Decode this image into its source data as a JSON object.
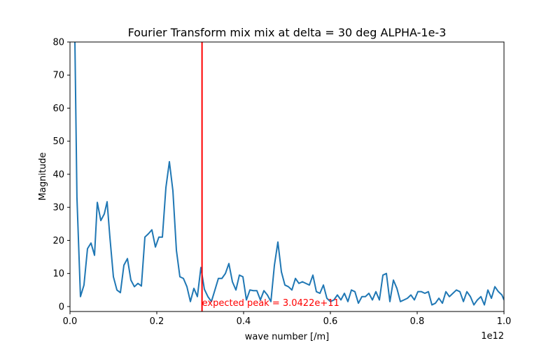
{
  "chart_data": {
    "type": "line",
    "title": "Fourier Transform mix mix at delta = 30 deg ALPHA-1e-3",
    "xlabel": "wave number [/m]",
    "ylabel": "Magnitude",
    "x_offset_label": "1e12",
    "xlim": [
      0,
      1.0
    ],
    "ylim": [
      -1.5,
      80
    ],
    "xticks": [
      0.0,
      0.2,
      0.4,
      0.6,
      0.8,
      1.0
    ],
    "xtick_labels": [
      "0.0",
      "0.2",
      "0.4",
      "0.6",
      "0.8",
      "1.0"
    ],
    "yticks": [
      0,
      10,
      20,
      30,
      40,
      50,
      60,
      70,
      80
    ],
    "ytick_labels": [
      "0",
      "10",
      "20",
      "30",
      "40",
      "50",
      "60",
      "70",
      "80"
    ],
    "grid": false,
    "series_color": "#1f77b4",
    "annotation": {
      "x": 0.30422,
      "text": "expected peak = 3.0422e+11",
      "color": "#ff0000"
    },
    "x": [
      0.0113,
      0.016,
      0.0241,
      0.0322,
      0.0403,
      0.0484,
      0.0565,
      0.0629,
      0.071,
      0.079,
      0.0855,
      0.0919,
      0.1,
      0.1081,
      0.1161,
      0.1242,
      0.1323,
      0.1403,
      0.1484,
      0.1565,
      0.1645,
      0.1726,
      0.1806,
      0.1887,
      0.1968,
      0.2048,
      0.2129,
      0.221,
      0.229,
      0.2371,
      0.2452,
      0.2532,
      0.2613,
      0.2694,
      0.2774,
      0.2855,
      0.2935,
      0.3016,
      0.3097,
      0.3177,
      0.3258,
      0.3339,
      0.3419,
      0.35,
      0.3581,
      0.3661,
      0.3742,
      0.3823,
      0.3903,
      0.3984,
      0.4065,
      0.4145,
      0.4226,
      0.4306,
      0.4387,
      0.4468,
      0.4548,
      0.4629,
      0.471,
      0.479,
      0.4871,
      0.4952,
      0.5032,
      0.5113,
      0.5194,
      0.5274,
      0.5355,
      0.5435,
      0.5516,
      0.5597,
      0.5677,
      0.5758,
      0.5839,
      0.5919,
      0.6,
      0.6081,
      0.6161,
      0.6242,
      0.6323,
      0.6403,
      0.6484,
      0.6565,
      0.6645,
      0.6726,
      0.6806,
      0.6887,
      0.6968,
      0.7048,
      0.7129,
      0.721,
      0.729,
      0.7371,
      0.7452,
      0.7532,
      0.7613,
      0.7694,
      0.7774,
      0.7855,
      0.7935,
      0.8016,
      0.8097,
      0.8177,
      0.8258,
      0.8339,
      0.8419,
      0.85,
      0.8581,
      0.8661,
      0.8742,
      0.8823,
      0.8903,
      0.8984,
      0.9065,
      0.9145,
      0.9226,
      0.9306,
      0.9387,
      0.9468,
      0.9548,
      0.9629,
      0.971,
      0.979,
      0.9871,
      0.9952,
      1.0
    ],
    "y": [
      80.0,
      33.0,
      3.0,
      6.5,
      17.5,
      19.2,
      15.5,
      31.5,
      26.0,
      28.0,
      31.7,
      21.0,
      9.0,
      5.0,
      4.2,
      12.5,
      14.5,
      8.0,
      6.0,
      7.0,
      6.2,
      21.0,
      22.0,
      23.2,
      18.0,
      21.0,
      21.0,
      36.0,
      43.8,
      35.0,
      17.0,
      9.0,
      8.5,
      6.0,
      1.5,
      5.5,
      3.0,
      11.8,
      5.2,
      3.0,
      1.5,
      5.0,
      8.5,
      8.5,
      10.0,
      13.0,
      7.5,
      5.0,
      9.5,
      9.0,
      2.0,
      5.0,
      4.8,
      4.8,
      2.0,
      4.8,
      3.5,
      1.5,
      12.5,
      19.5,
      10.5,
      6.5,
      6.0,
      5.0,
      8.5,
      7.0,
      7.5,
      7.0,
      6.5,
      9.5,
      4.5,
      4.0,
      6.5,
      2.5,
      1.5,
      2.0,
      3.5,
      2.0,
      4.0,
      1.5,
      5.0,
      4.5,
      1.0,
      3.0,
      3.0,
      4.0,
      2.0,
      4.5,
      2.0,
      9.5,
      10.0,
      1.5,
      8.0,
      5.5,
      1.5,
      2.0,
      2.5,
      3.5,
      2.0,
      4.5,
      4.5,
      4.0,
      4.5,
      0.5,
      1.0,
      2.5,
      1.0,
      4.5,
      3.0,
      4.0,
      5.0,
      4.5,
      1.5,
      4.5,
      3.0,
      0.5,
      2.0,
      3.0,
      0.5,
      5.0,
      2.5,
      6.0,
      4.5,
      3.5,
      2.0
    ]
  }
}
